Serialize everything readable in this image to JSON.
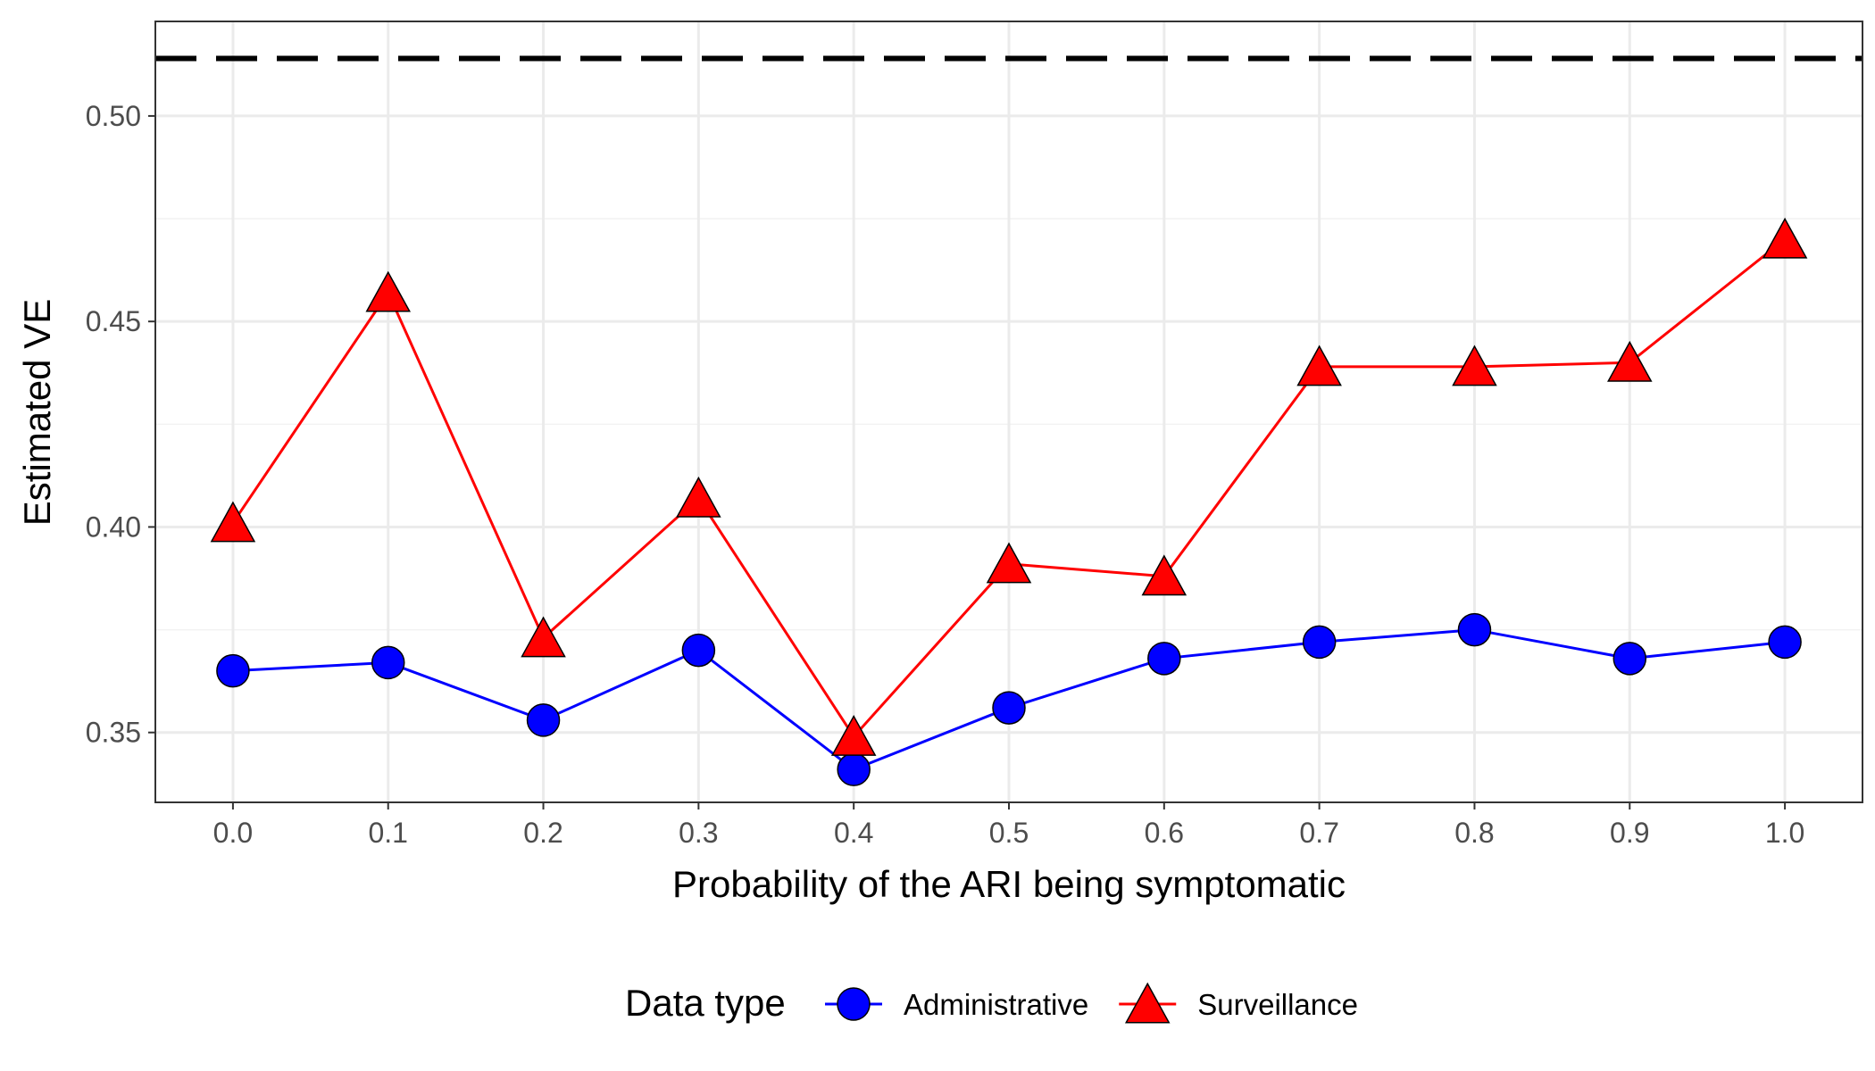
{
  "chart_data": {
    "type": "line",
    "xlabel": "Probability of the ARI being symptomatic",
    "ylabel": "Estimated VE",
    "x": [
      0.0,
      0.1,
      0.2,
      0.3,
      0.4,
      0.5,
      0.6,
      0.7,
      0.8,
      0.9,
      1.0
    ],
    "x_tick_labels": [
      "0.0",
      "0.1",
      "0.2",
      "0.3",
      "0.4",
      "0.5",
      "0.6",
      "0.7",
      "0.8",
      "0.9",
      "1.0"
    ],
    "y_ticks": [
      0.35,
      0.4,
      0.45,
      0.5
    ],
    "y_tick_labels": [
      "0.35",
      "0.40",
      "0.45",
      "0.50"
    ],
    "xlim": [
      -0.05,
      1.05
    ],
    "ylim": [
      0.333,
      0.523
    ],
    "grid": true,
    "legend_position": "bottom",
    "legend_title": "Data type",
    "reference_line": {
      "y": 0.514,
      "style": "dashed",
      "color": "#000000"
    },
    "series": [
      {
        "name": "Administrative",
        "marker": "circle",
        "color": "#0000ff",
        "values": [
          0.365,
          0.367,
          0.353,
          0.37,
          0.341,
          0.356,
          0.368,
          0.372,
          0.375,
          0.368,
          0.372
        ]
      },
      {
        "name": "Surveillance",
        "marker": "triangle",
        "color": "#ff0000",
        "values": [
          0.401,
          0.457,
          0.373,
          0.407,
          0.349,
          0.391,
          0.388,
          0.439,
          0.439,
          0.44,
          0.47
        ]
      }
    ]
  }
}
